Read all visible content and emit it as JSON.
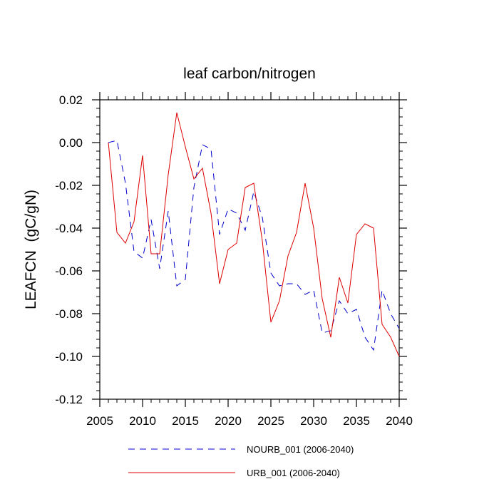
{
  "chart_data": {
    "type": "line",
    "title": "leaf carbon/nitrogen",
    "ylabel": "LEAFCN  (gC/gN)",
    "xlabel": "",
    "xlim": [
      2006,
      2040
    ],
    "ylim": [
      -0.12,
      0.02
    ],
    "x_ticks": [
      2005,
      2010,
      2015,
      2020,
      2025,
      2030,
      2035,
      2040
    ],
    "x_tick_labels": [
      "2005",
      "2010",
      "2015",
      "2020",
      "2025",
      "2030",
      "2035",
      "2040"
    ],
    "y_ticks": [
      0.02,
      0.0,
      -0.02,
      -0.04,
      -0.06,
      -0.08,
      -0.1,
      -0.12
    ],
    "y_tick_labels": [
      "0.02",
      "0.00",
      "-0.02",
      "-0.04",
      "-0.06",
      "-0.08",
      "-0.10",
      "-0.12"
    ],
    "legend_position": "bottom",
    "x": [
      2006,
      2007,
      2008,
      2009,
      2010,
      2011,
      2012,
      2013,
      2014,
      2015,
      2016,
      2017,
      2018,
      2019,
      2020,
      2021,
      2022,
      2023,
      2024,
      2025,
      2026,
      2027,
      2028,
      2029,
      2030,
      2031,
      2032,
      2033,
      2034,
      2035,
      2036,
      2037,
      2038,
      2039,
      2040
    ],
    "series": [
      {
        "name": "NOURB_001 (2006-2040)",
        "color": "#0000cc",
        "style": "dashed",
        "values": [
          0.0,
          0.001,
          -0.019,
          -0.051,
          -0.054,
          -0.036,
          -0.059,
          -0.032,
          -0.067,
          -0.064,
          -0.021,
          -0.001,
          -0.003,
          -0.043,
          -0.031,
          -0.033,
          -0.041,
          -0.023,
          -0.035,
          -0.061,
          -0.067,
          -0.066,
          -0.066,
          -0.071,
          -0.069,
          -0.089,
          -0.088,
          -0.074,
          -0.08,
          -0.078,
          -0.091,
          -0.097,
          -0.069,
          -0.08,
          -0.087
        ]
      },
      {
        "name": "URB_001 (2006-2040)",
        "color": "#dd0000",
        "style": "solid",
        "values": [
          0.0,
          -0.042,
          -0.047,
          -0.037,
          -0.006,
          -0.052,
          -0.052,
          -0.015,
          0.014,
          -0.002,
          -0.017,
          -0.012,
          -0.033,
          -0.066,
          -0.05,
          -0.047,
          -0.021,
          -0.019,
          -0.046,
          -0.084,
          -0.074,
          -0.053,
          -0.042,
          -0.019,
          -0.04,
          -0.073,
          -0.091,
          -0.063,
          -0.075,
          -0.043,
          -0.038,
          -0.04,
          -0.085,
          -0.091,
          -0.1
        ]
      }
    ]
  }
}
